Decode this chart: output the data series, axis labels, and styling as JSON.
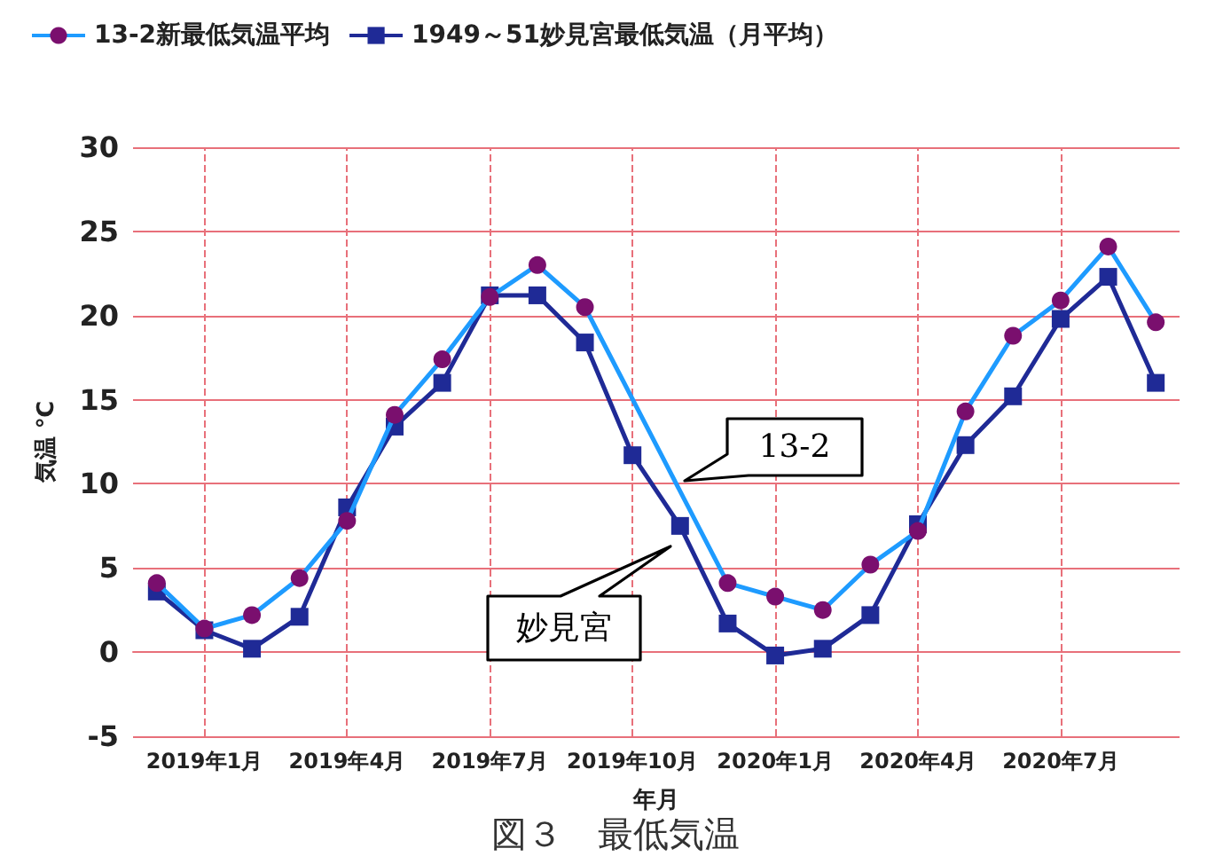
{
  "chart_data": {
    "type": "line",
    "title": "図３　最低気温",
    "xlabel": "年月",
    "ylabel": "気温 ℃",
    "categories": [
      null,
      "2019年1月",
      null,
      null,
      "2019年4月",
      null,
      null,
      "2019年7月",
      null,
      null,
      "2019年10月",
      null,
      null,
      "2020年1月",
      null,
      null,
      "2020年4月",
      null,
      null,
      "2020年7月",
      null,
      null
    ],
    "series": [
      {
        "name": "13-2新最低気温平均",
        "color": "#1e9bff",
        "marker": "circle",
        "colors": [
          "#7a0f6e",
          "#7a0f6e",
          "#7a0f6e",
          "#7a0f6e",
          "#7a0f6e",
          "#7a0f6e",
          "#7a0f6e",
          "#7a0f6e",
          "#7a0f6e",
          "#7a0f6e",
          "#7a0f6e",
          "#7a0f6e",
          "#7a0f6e",
          "#7a0f6e",
          "#7a0f6e",
          "#7a0f6e",
          "#7a0f6e",
          "#7a0f6e",
          "#7a0f6e",
          "#7a0f6e",
          "#7a0f6e",
          "#7a0f6e"
        ],
        "values": [
          4.1,
          1.4,
          2.2,
          4.4,
          7.8,
          14.1,
          17.4,
          21.1,
          23.0,
          20.5,
          null,
          null,
          4.1,
          3.3,
          2.5,
          5.2,
          7.2,
          14.3,
          18.8,
          20.9,
          24.1,
          19.6
        ]
      },
      {
        "name": "1949～51妙見宮最低気温（月平均）",
        "color": "#1f2a96",
        "marker": "square",
        "values": [
          3.6,
          1.3,
          0.2,
          2.1,
          8.6,
          13.4,
          16.0,
          21.2,
          21.2,
          18.4,
          11.7,
          7.5,
          1.7,
          -0.2,
          0.2,
          2.2,
          7.6,
          12.3,
          15.2,
          19.8,
          22.3,
          16.0
        ]
      }
    ],
    "ylim": [
      -5,
      30
    ],
    "yticks": [
      -5,
      0,
      5,
      10,
      15,
      20,
      25,
      30
    ],
    "grid": true,
    "legend": "top left",
    "annotations": [
      "13-2",
      "妙見宮"
    ]
  }
}
